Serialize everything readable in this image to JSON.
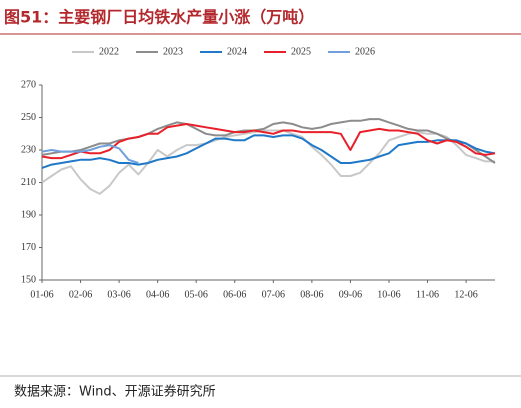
{
  "chart_data": {
    "type": "line",
    "title": "图51：主要钢厂日均铁水产量小涨（万吨）",
    "source": "数据来源：Wind、开源证券研究所",
    "categories": [
      "01-06",
      null,
      null,
      null,
      "02-06",
      null,
      null,
      null,
      "03-06",
      null,
      null,
      null,
      "04-06",
      null,
      null,
      null,
      "05-06",
      null,
      null,
      null,
      "06-06",
      null,
      null,
      null,
      "07-06",
      null,
      null,
      null,
      "08-06",
      null,
      null,
      null,
      "09-06",
      null,
      null,
      null,
      "10-06",
      null,
      null,
      null,
      "11-06",
      null,
      null,
      null,
      "12-06",
      null,
      null,
      null
    ],
    "ylim": [
      150,
      270
    ],
    "yticks": [
      150,
      170,
      190,
      210,
      230,
      250,
      270
    ],
    "legend": "top",
    "series": [
      {
        "name": "2022",
        "color": "#c8c8c8",
        "values": [
          210,
          214,
          218,
          220,
          212,
          206,
          203,
          208,
          216,
          221,
          215,
          222,
          230,
          226,
          230,
          233,
          233,
          234,
          236,
          238,
          239,
          240,
          241,
          242,
          242,
          242,
          240,
          238,
          232,
          227,
          221,
          214,
          214,
          216,
          222,
          228,
          236,
          238,
          240,
          241,
          240,
          240,
          238,
          233,
          227,
          225,
          223,
          223
        ]
      },
      {
        "name": "2023",
        "color": "#8c8c8c",
        "values": [
          227,
          228,
          229,
          229,
          230,
          232,
          234,
          234,
          236,
          237,
          238,
          240,
          243,
          245,
          247,
          246,
          243,
          240,
          239,
          239,
          241,
          242,
          242,
          243,
          246,
          247,
          246,
          244,
          243,
          244,
          246,
          247,
          248,
          248,
          249,
          249,
          247,
          245,
          243,
          242,
          242,
          240,
          237,
          235,
          234,
          230,
          226,
          222
        ]
      },
      {
        "name": "2024",
        "color": "#1f78c8",
        "values": [
          219,
          221,
          222,
          223,
          224,
          224,
          225,
          224,
          222,
          222,
          221,
          222,
          224,
          225,
          226,
          228,
          231,
          234,
          237,
          237,
          236,
          236,
          239,
          239,
          238,
          239,
          239,
          237,
          233,
          230,
          226,
          222,
          222,
          223,
          224,
          226,
          228,
          233,
          234,
          235,
          235,
          236,
          236,
          236,
          234,
          231,
          229,
          228
        ]
      },
      {
        "name": "2025",
        "color": "#e8202a",
        "values": [
          226,
          225,
          225,
          227,
          229,
          228,
          228,
          230,
          235,
          237,
          238,
          240,
          240,
          244,
          245,
          246,
          245,
          244,
          243,
          242,
          241,
          241,
          242,
          241,
          240,
          242,
          242,
          241,
          241,
          241,
          241,
          240,
          230,
          241,
          242,
          243,
          242,
          242,
          241,
          240,
          236,
          234,
          236,
          235,
          232,
          228,
          227,
          228
        ]
      },
      {
        "name": "2026",
        "color": "#6fa0dc",
        "values": [
          229,
          230,
          229,
          229,
          229,
          230,
          232,
          233,
          231,
          224,
          222,
          null,
          null,
          null,
          null,
          null,
          null,
          null,
          null,
          null,
          null,
          null,
          null,
          null,
          null,
          null,
          null,
          null,
          null,
          null,
          null,
          null,
          null,
          null,
          null,
          null,
          null,
          null,
          null,
          null,
          null,
          null,
          null,
          null,
          null,
          null,
          null,
          null
        ]
      }
    ]
  }
}
